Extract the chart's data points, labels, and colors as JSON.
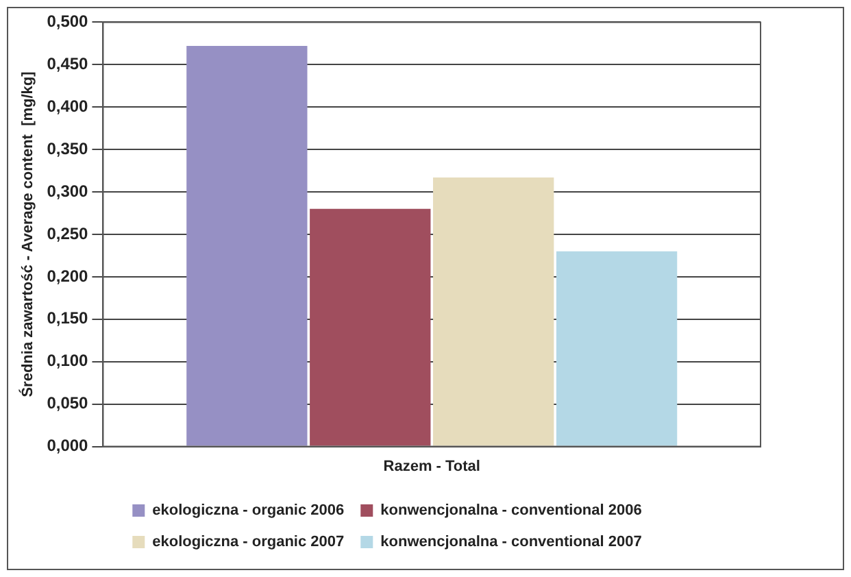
{
  "chart_data": {
    "type": "bar",
    "ylabel": "Średnia zawartość - Average content  [mg/kg]",
    "categories": [
      "Razem - Total"
    ],
    "series": [
      {
        "name": "ekologiczna - organic 2006",
        "color": "#9690c4",
        "values": [
          0.472
        ]
      },
      {
        "name": "konwencjonalna - conventional 2006",
        "color": "#a04e5e",
        "values": [
          0.28
        ]
      },
      {
        "name": "ekologiczna - organic 2007",
        "color": "#e6dcbc",
        "values": [
          0.317
        ]
      },
      {
        "name": "konwencjonalna - conventional 2007",
        "color": "#b4d8e6",
        "values": [
          0.23
        ]
      }
    ],
    "ylim": [
      0,
      0.5
    ],
    "yticks": [
      {
        "value": 0,
        "label": "0,000"
      },
      {
        "value": 0.05,
        "label": "0,050"
      },
      {
        "value": 0.1,
        "label": "0,100"
      },
      {
        "value": 0.15,
        "label": "0,150"
      },
      {
        "value": 0.2,
        "label": "0,200"
      },
      {
        "value": 0.25,
        "label": "0,250"
      },
      {
        "value": 0.3,
        "label": "0,300"
      },
      {
        "value": 0.35,
        "label": "0,350"
      },
      {
        "value": 0.4,
        "label": "0,400"
      },
      {
        "value": 0.45,
        "label": "0,450"
      },
      {
        "value": 0.5,
        "label": "0,500"
      }
    ],
    "grid": "y",
    "legend": "bottom"
  }
}
